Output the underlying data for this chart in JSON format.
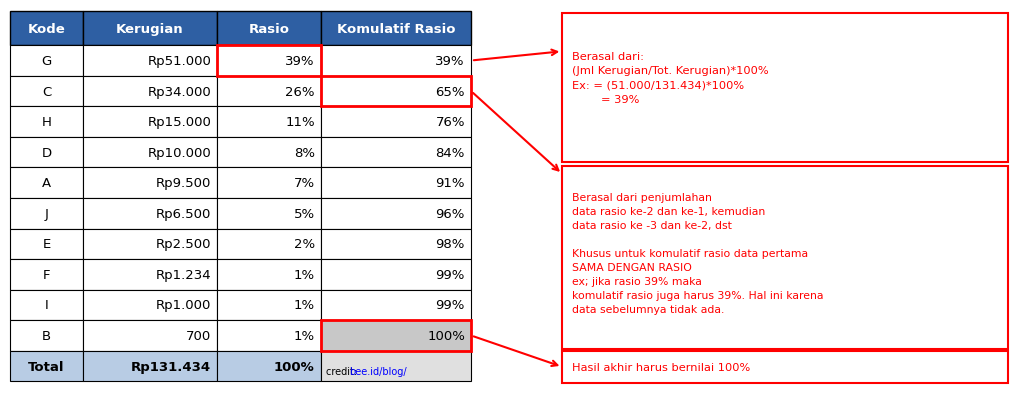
{
  "headers": [
    "Kode",
    "Kerugian",
    "Rasio",
    "Komulatif Rasio"
  ],
  "rows": [
    [
      "G",
      "Rp51.000",
      "39%",
      "39%"
    ],
    [
      "C",
      "Rp34.000",
      "26%",
      "65%"
    ],
    [
      "H",
      "Rp15.000",
      "11%",
      "76%"
    ],
    [
      "D",
      "Rp10.000",
      "8%",
      "84%"
    ],
    [
      "A",
      "Rp9.500",
      "7%",
      "91%"
    ],
    [
      "J",
      "Rp6.500",
      "5%",
      "96%"
    ],
    [
      "E",
      "Rp2.500",
      "2%",
      "98%"
    ],
    [
      "F",
      "Rp1.234",
      "1%",
      "99%"
    ],
    [
      "I",
      "Rp1.000",
      "1%",
      "99%"
    ],
    [
      "B",
      "700",
      "1%",
      "100%"
    ]
  ],
  "total_row": [
    "Total",
    "Rp131.434",
    "100%",
    ""
  ],
  "header_bg": "#2E5FA3",
  "header_text": "#FFFFFF",
  "total_bg": "#B8CCE4",
  "last_kumul_bg": "#C8C8C8",
  "total_last_bg": "#E0E0E0",
  "annotation1_text": "Berasal dari:\n(Jml Kerugian/Tot. Kerugian)*100%\nEx: = (51.000/131.434)*100%\n        = 39%",
  "annotation2_text": "Berasal dari penjumlahan\ndata rasio ke-2 dan ke-1, kemudian\ndata rasio ke -3 dan ke-2, dst\n\nKhusus untuk komulatif rasio data pertama\nSAMA DENGAN RASIO\nex; jika rasio 39% maka\nkomulatif rasio juga harus 39%. Hal ini karena\ndata sebelumnya tidak ada.",
  "annotation3_text": "Hasil akhir harus bernilai 100%",
  "credit_plain": "credit: ",
  "credit_link": "bee.id/blog/",
  "fig_width": 10.13,
  "fig_height": 4.02
}
